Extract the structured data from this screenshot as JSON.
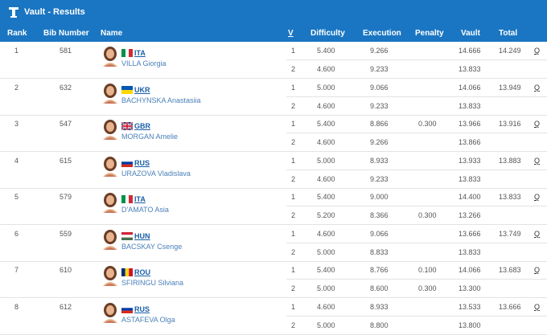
{
  "header": {
    "title": "Vault - Results",
    "columns": {
      "rank": "Rank",
      "bib": "Bib Number",
      "name": "Name",
      "v": "V",
      "difficulty": "Difficulty",
      "execution": "Execution",
      "penalty": "Penalty",
      "vault": "Vault",
      "total": "Total"
    }
  },
  "rows": [
    {
      "rank": "1",
      "bib": "581",
      "country": "ITA",
      "name": "VILLA Giorgia",
      "total": "14.249",
      "q": "Q",
      "vaults": [
        {
          "v": "1",
          "d": "5.400",
          "e": "9.266",
          "p": "",
          "score": "14.666"
        },
        {
          "v": "2",
          "d": "4.600",
          "e": "9.233",
          "p": "",
          "score": "13.833"
        }
      ]
    },
    {
      "rank": "2",
      "bib": "632",
      "country": "UKR",
      "name": "BACHYNSKA Anastasiia",
      "total": "13.949",
      "q": "Q",
      "vaults": [
        {
          "v": "1",
          "d": "5.000",
          "e": "9.066",
          "p": "",
          "score": "14.066"
        },
        {
          "v": "2",
          "d": "4.600",
          "e": "9.233",
          "p": "",
          "score": "13.833"
        }
      ]
    },
    {
      "rank": "3",
      "bib": "547",
      "country": "GBR",
      "name": "MORGAN Amelie",
      "total": "13.916",
      "q": "Q",
      "vaults": [
        {
          "v": "1",
          "d": "5.400",
          "e": "8.866",
          "p": "0.300",
          "score": "13.966"
        },
        {
          "v": "2",
          "d": "4.600",
          "e": "9.266",
          "p": "",
          "score": "13.866"
        }
      ]
    },
    {
      "rank": "4",
      "bib": "615",
      "country": "RUS",
      "name": "URAZOVA Vladislava",
      "total": "13.883",
      "q": "Q",
      "vaults": [
        {
          "v": "1",
          "d": "5.000",
          "e": "8.933",
          "p": "",
          "score": "13.933"
        },
        {
          "v": "2",
          "d": "4.600",
          "e": "9.233",
          "p": "",
          "score": "13.833"
        }
      ]
    },
    {
      "rank": "5",
      "bib": "579",
      "country": "ITA",
      "name": "D'AMATO Asia",
      "total": "13.833",
      "q": "Q",
      "vaults": [
        {
          "v": "1",
          "d": "5.400",
          "e": "9.000",
          "p": "",
          "score": "14.400"
        },
        {
          "v": "2",
          "d": "5.200",
          "e": "8.366",
          "p": "0.300",
          "score": "13.266"
        }
      ]
    },
    {
      "rank": "6",
      "bib": "559",
      "country": "HUN",
      "name": "BACSKAY Csenge",
      "total": "13.749",
      "q": "Q",
      "vaults": [
        {
          "v": "1",
          "d": "4.600",
          "e": "9.066",
          "p": "",
          "score": "13.666"
        },
        {
          "v": "2",
          "d": "5.000",
          "e": "8.833",
          "p": "",
          "score": "13.833"
        }
      ]
    },
    {
      "rank": "7",
      "bib": "610",
      "country": "ROU",
      "name": "SFIRINGU Silviana",
      "total": "13.683",
      "q": "Q",
      "vaults": [
        {
          "v": "1",
          "d": "5.400",
          "e": "8.766",
          "p": "0.100",
          "score": "14.066"
        },
        {
          "v": "2",
          "d": "5.000",
          "e": "8.600",
          "p": "0.300",
          "score": "13.300"
        }
      ]
    },
    {
      "rank": "8",
      "bib": "612",
      "country": "RUS",
      "name": "ASTAFEVA Olga",
      "total": "13.666",
      "q": "Q",
      "vaults": [
        {
          "v": "1",
          "d": "4.600",
          "e": "8.933",
          "p": "",
          "score": "13.533"
        },
        {
          "v": "2",
          "d": "5.000",
          "e": "8.800",
          "p": "",
          "score": "13.800"
        }
      ]
    }
  ],
  "colors": {
    "header_bg": "#1a76c2",
    "link": "#1a5fa8",
    "name": "#4a7fb8"
  },
  "icons": {
    "title": "vault-apparatus-icon",
    "avatar": "athlete-avatar-icon"
  }
}
